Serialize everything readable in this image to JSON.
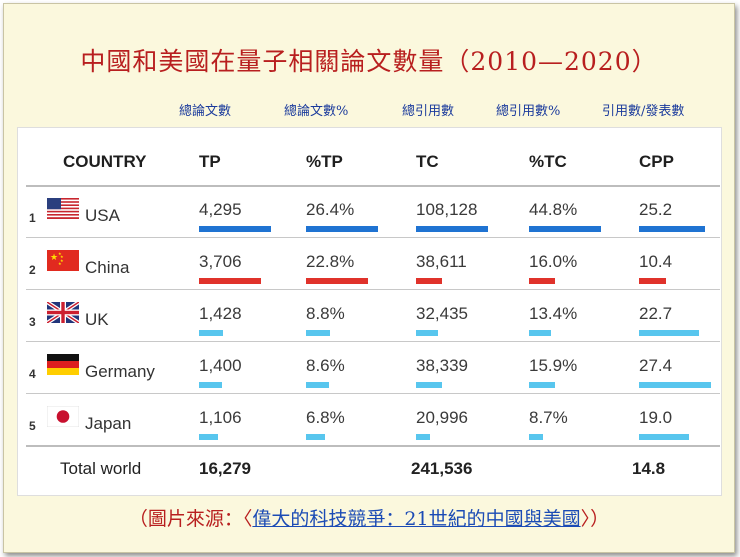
{
  "title": "中國和美國在量子相關論文數量（2010—2020）",
  "legend": {
    "tp": "總論文數",
    "tp_pct": "總論文數%",
    "tc": "總引用數",
    "tc_pct": "總引用數%",
    "cpp": "引用數/發表數"
  },
  "colors": {
    "usa_bar": "#1f73d2",
    "china_bar": "#e0322b",
    "other_bar": "#58c6ee",
    "title": "#b81f1f",
    "legend_text": "#1a3a9c"
  },
  "table": {
    "headers": [
      "COUNTRY",
      "TP",
      "%TP",
      "TC",
      "%TC",
      "CPP"
    ],
    "rows": [
      {
        "rank": "1",
        "country": "USA",
        "flag": "usa-flag",
        "tp": "4,295",
        "tp_pct": "26.4%",
        "tc": "108,128",
        "tc_pct": "44.8%",
        "cpp": "25.2",
        "bars": {
          "tp": 4295,
          "tp_pct": 26.4,
          "tc": 108128,
          "tc_pct": 44.8,
          "cpp": 25.2
        }
      },
      {
        "rank": "2",
        "country": "China",
        "flag": "china-flag",
        "tp": "3,706",
        "tp_pct": "22.8%",
        "tc": "38,611",
        "tc_pct": "16.0%",
        "cpp": "10.4",
        "bars": {
          "tp": 3706,
          "tp_pct": 22.8,
          "tc": 38611,
          "tc_pct": 16.0,
          "cpp": 10.4
        }
      },
      {
        "rank": "3",
        "country": "UK",
        "flag": "uk-flag",
        "tp": "1,428",
        "tp_pct": "8.8%",
        "tc": "32,435",
        "tc_pct": "13.4%",
        "cpp": "22.7",
        "bars": {
          "tp": 1428,
          "tp_pct": 8.8,
          "tc": 32435,
          "tc_pct": 13.4,
          "cpp": 22.7
        }
      },
      {
        "rank": "4",
        "country": "Germany",
        "flag": "germany-flag",
        "tp": "1,400",
        "tp_pct": "8.6%",
        "tc": "38,339",
        "tc_pct": "15.9%",
        "cpp": "27.4",
        "bars": {
          "tp": 1400,
          "tp_pct": 8.6,
          "tc": 38339,
          "tc_pct": 15.9,
          "cpp": 27.4
        }
      },
      {
        "rank": "5",
        "country": "Japan",
        "flag": "japan-flag",
        "tp": "1,106",
        "tp_pct": "6.8%",
        "tc": "20,996",
        "tc_pct": "8.7%",
        "cpp": "19.0",
        "bars": {
          "tp": 1106,
          "tp_pct": 6.8,
          "tc": 20996,
          "tc_pct": 8.7,
          "cpp": 19.0
        }
      }
    ],
    "bar_max": {
      "tp": 4295,
      "tp_pct": 26.4,
      "tc": 108128,
      "tc_pct": 44.8,
      "cpp": 27.4
    },
    "total": {
      "label": "Total world",
      "tp": "16,279",
      "tc": "241,536",
      "cpp": "14.8"
    }
  },
  "source": {
    "prefix": "（圖片來源：〈",
    "link": "偉大的科技競爭：21世紀的中國與美國",
    "suffix": "〉）"
  }
}
